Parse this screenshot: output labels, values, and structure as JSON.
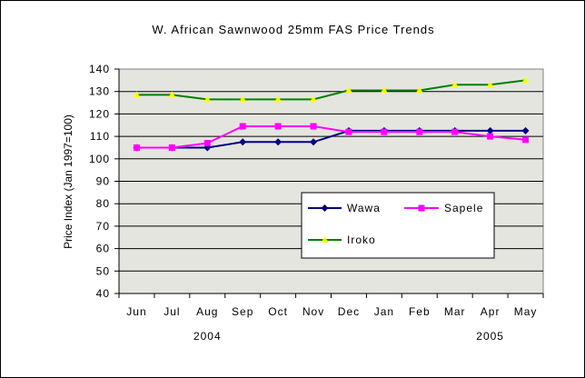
{
  "chart_data": {
    "type": "line",
    "title": "W. African Sawnwood 25mm  FAS Price Trends",
    "ylabel": "Price Index (Jan 1997=100)",
    "xlabel": "",
    "categories": [
      "Jun",
      "Jul",
      "Aug",
      "Sep",
      "Oct",
      "Nov",
      "Dec",
      "Jan",
      "Feb",
      "Mar",
      "Apr",
      "May"
    ],
    "year_labels": [
      {
        "label": "2004",
        "category": "Aug"
      },
      {
        "label": "2005",
        "category": "Apr"
      }
    ],
    "ylim": [
      40,
      140
    ],
    "yticks": [
      40,
      50,
      60,
      70,
      80,
      90,
      100,
      110,
      120,
      130,
      140
    ],
    "grid": true,
    "legend": "inside-right",
    "series": [
      {
        "name": "Wawa",
        "color": "#000080",
        "marker": "diamond",
        "values": [
          105,
          105,
          105,
          107.5,
          107.5,
          107.5,
          112.5,
          112.5,
          112.5,
          112.5,
          112.5,
          112.5
        ]
      },
      {
        "name": "Sapele",
        "color": "#ff00ff",
        "marker": "square",
        "values": [
          105,
          105,
          107,
          114.5,
          114.5,
          114.5,
          112,
          112,
          112,
          112,
          110,
          108.5
        ]
      },
      {
        "name": "Iroko",
        "color": "#008000",
        "marker": "triangle",
        "marker_color": "#ffff00",
        "values": [
          128.5,
          128.5,
          126.5,
          126.5,
          126.5,
          126.5,
          130.5,
          130.5,
          130.5,
          133,
          133,
          135
        ]
      }
    ]
  }
}
